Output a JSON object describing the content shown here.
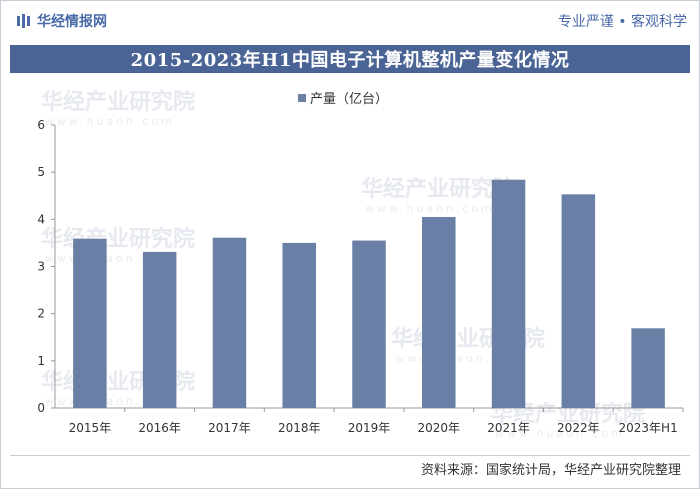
{
  "header": {
    "brand": "华经情报网",
    "slogan": "专业严谨 • 客观科学"
  },
  "source": "资料来源：国家统计局，华经产业研究院整理",
  "watermark": "华经产业研究院",
  "watermark_url": "www.huaon.com",
  "colors": {
    "bar": "#6a7fa5",
    "title_bg": "#4a6495",
    "brand": "#4a6aa8"
  },
  "chart_data": {
    "type": "bar",
    "title": "2015-2023年H1中国电子计算机整机产量变化情况",
    "categories": [
      "2015年",
      "2016年",
      "2017年",
      "2018年",
      "2019年",
      "2020年",
      "2021年",
      "2022年",
      "2023年H1"
    ],
    "series": [
      {
        "name": "产量（亿台）",
        "values": [
          3.59,
          3.31,
          3.61,
          3.5,
          3.55,
          4.05,
          4.84,
          4.53,
          1.69
        ]
      }
    ],
    "ylim": [
      0,
      6
    ],
    "yticks": [
      0,
      1,
      2,
      3,
      4,
      5,
      6
    ],
    "legend_position": "top-center",
    "grid": false
  }
}
